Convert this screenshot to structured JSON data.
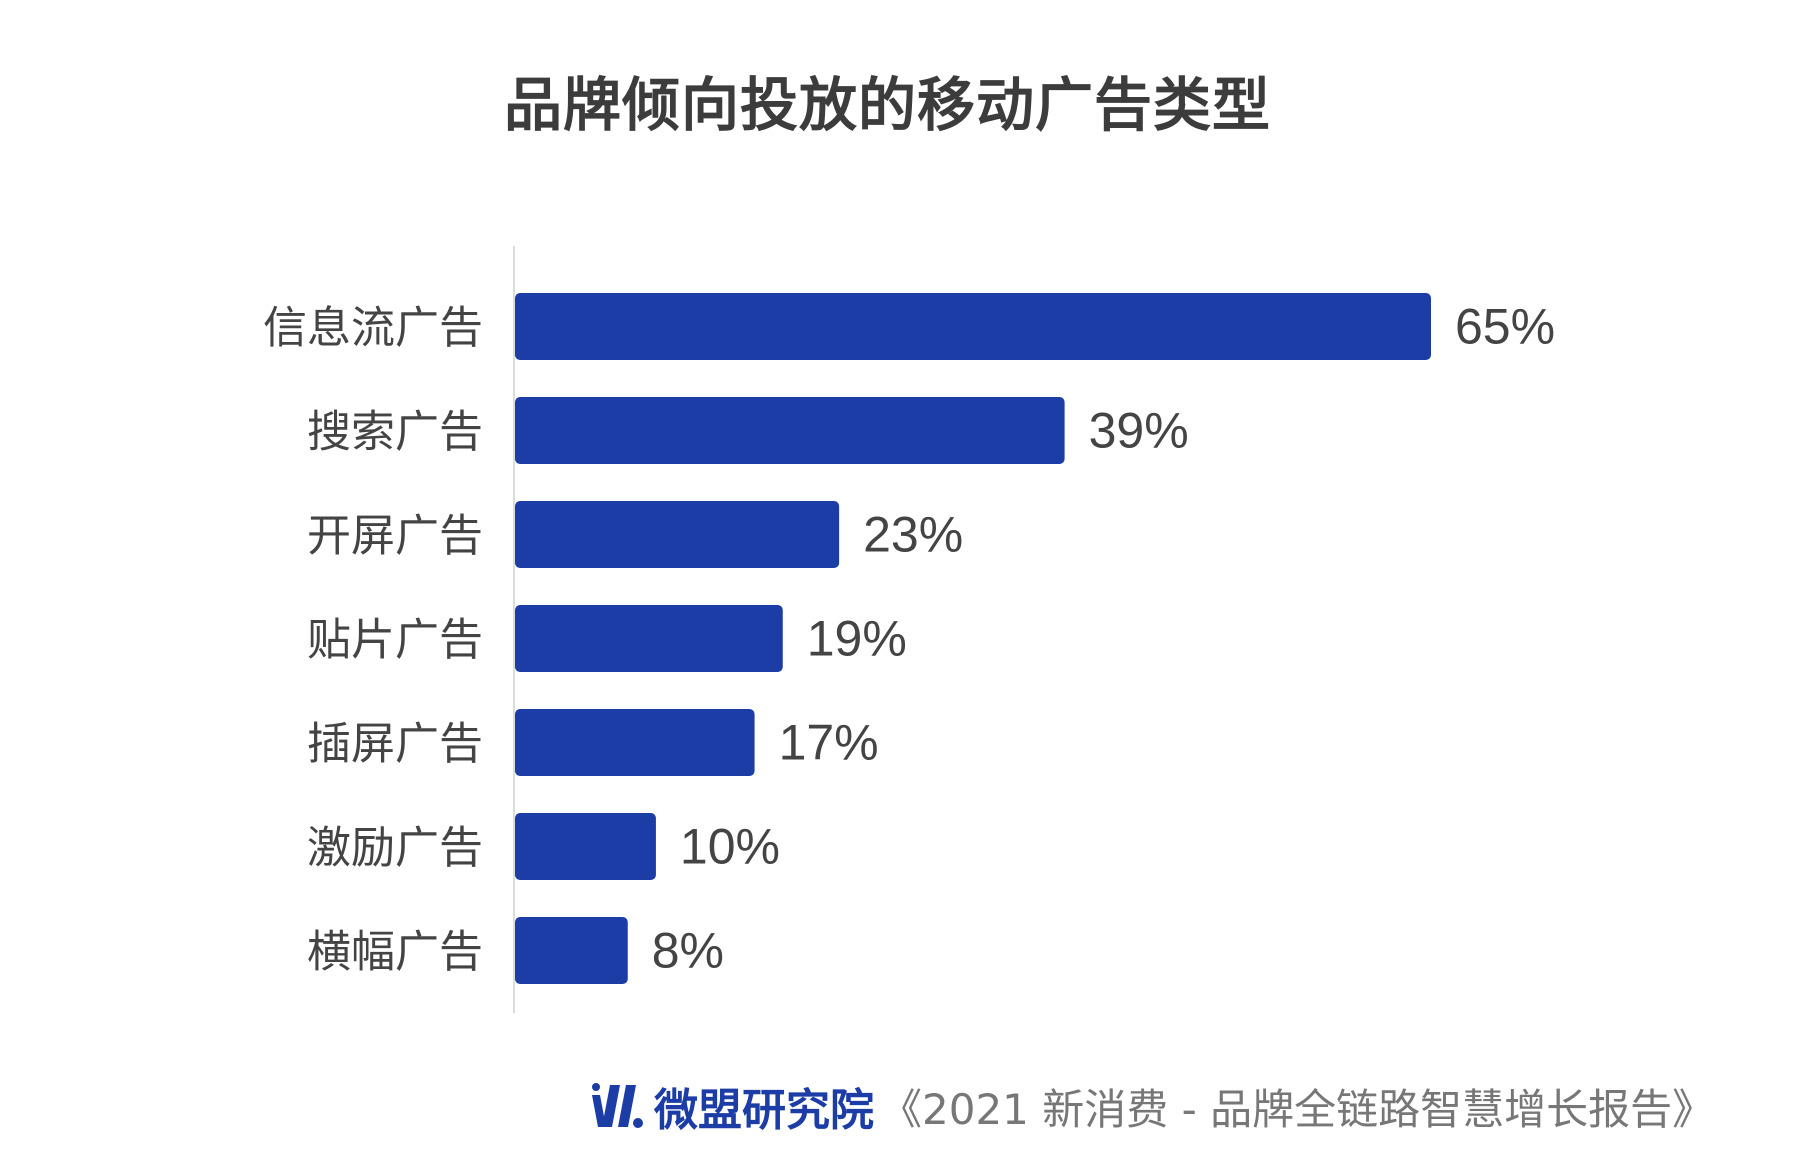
{
  "chart_data": {
    "type": "bar",
    "orientation": "horizontal",
    "title": "品牌倾向投放的移动广告类型",
    "categories": [
      "信息流广告",
      "搜索广告",
      "开屏广告",
      "贴片广告",
      "插屏广告",
      "激励广告",
      "横幅广告"
    ],
    "values": [
      65,
      39,
      23,
      19,
      17,
      10,
      8
    ],
    "value_labels": [
      "65%",
      "39%",
      "23%",
      "19%",
      "17%",
      "10%",
      "8%"
    ],
    "unit": "%",
    "xlabel": "",
    "ylabel": "",
    "xlim": [
      0,
      65
    ],
    "grid": false,
    "bar_color": "#1c3ca6"
  },
  "footer": {
    "brand": "微盟研究院",
    "source": "《2021 新消费 - 品牌全链路智慧增长报告》"
  }
}
